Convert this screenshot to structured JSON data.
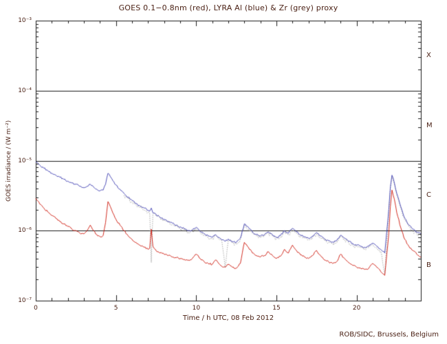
{
  "credit": "ROB/SIDC, Brussels, Belgium",
  "colors": {
    "background": "#ffffff",
    "frame": "#1a1a1a",
    "text": "#4a2014",
    "goes_red": "#cc1408",
    "lyra_al_blue": "#3b3bb0",
    "lyra_zr_grey": "#9a9a9a"
  },
  "chart_data": {
    "type": "line",
    "title": "GOES 0.1−0.8nm (red), LYRA Al (blue) & Zr (grey) proxy",
    "xlabel": "Time / h UTC, 08 Feb 2012",
    "ylabel": "GOES irradiance / (W m⁻²)",
    "x_range": [
      0,
      24
    ],
    "x_major_ticks": [
      0,
      5,
      10,
      15,
      20
    ],
    "x_minor_step": 1,
    "y_scale": "log",
    "y_range": [
      1e-07,
      0.001
    ],
    "y_ticks": [
      {
        "value": 0.001,
        "label": "10⁻³"
      },
      {
        "value": 0.0001,
        "label": "10⁻⁴"
      },
      {
        "value": 1e-05,
        "label": "10⁻⁵"
      },
      {
        "value": 1e-06,
        "label": "10⁻⁶"
      },
      {
        "value": 1e-07,
        "label": "10⁻⁷"
      }
    ],
    "hlines": [
      0.0001,
      1e-05,
      1e-06
    ],
    "flare_classes": [
      {
        "label": "X",
        "flux_low": 0.0001,
        "flux_high": 0.001
      },
      {
        "label": "M",
        "flux_low": 1e-05,
        "flux_high": 0.0001
      },
      {
        "label": "C",
        "flux_low": 1e-06,
        "flux_high": 1e-05
      },
      {
        "label": "B",
        "flux_low": 1e-07,
        "flux_high": 1e-06
      }
    ],
    "grid": false,
    "legend_position": "in-title",
    "series": [
      {
        "name": "GOES 0.1-0.8nm",
        "color": "#cc1408",
        "style": "solid",
        "noise": 0.013,
        "x": [
          0,
          0.25,
          0.5,
          0.75,
          1,
          1.25,
          1.5,
          1.75,
          2,
          2.25,
          2.5,
          2.75,
          3,
          3.2,
          3.4,
          3.6,
          3.8,
          4,
          4.2,
          4.35,
          4.5,
          4.65,
          4.8,
          5,
          5.25,
          5.5,
          5.75,
          6,
          6.25,
          6.5,
          6.75,
          7,
          7.1,
          7.2,
          7.3,
          7.5,
          7.75,
          8,
          8.25,
          8.5,
          8.75,
          9,
          9.25,
          9.5,
          9.75,
          10,
          10.25,
          10.5,
          10.75,
          11,
          11.2,
          11.4,
          11.6,
          11.8,
          12,
          12.25,
          12.5,
          12.75,
          13,
          13.25,
          13.5,
          13.75,
          14,
          14.25,
          14.5,
          14.75,
          15,
          15.25,
          15.5,
          15.75,
          16,
          16.25,
          16.5,
          16.75,
          17,
          17.25,
          17.5,
          17.75,
          18,
          18.25,
          18.5,
          18.75,
          19,
          19.25,
          19.5,
          19.75,
          20,
          20.25,
          20.5,
          20.75,
          21,
          21.25,
          21.5,
          21.75,
          22,
          22.1,
          22.2,
          22.35,
          22.5,
          22.75,
          23,
          23.25,
          23.5,
          23.75,
          24
        ],
        "y": [
          2.9e-06,
          2.4e-06,
          2.1e-06,
          1.85e-06,
          1.65e-06,
          1.5e-06,
          1.35e-06,
          1.25e-06,
          1.15e-06,
          1.05e-06,
          1e-06,
          9.2e-07,
          9e-07,
          1e-06,
          1.2e-06,
          1e-06,
          8.8e-07,
          8.2e-07,
          8.5e-07,
          1.3e-06,
          2.6e-06,
          2.2e-06,
          1.8e-06,
          1.45e-06,
          1.2e-06,
          1e-06,
          8.5e-07,
          7.5e-07,
          6.8e-07,
          6.2e-07,
          5.8e-07,
          5.4e-07,
          5.6e-07,
          1.05e-06,
          6e-07,
          5.2e-07,
          4.8e-07,
          4.6e-07,
          4.4e-07,
          4.2e-07,
          4.1e-07,
          4e-07,
          3.9e-07,
          3.8e-07,
          4e-07,
          4.6e-07,
          4e-07,
          3.6e-07,
          3.4e-07,
          3.3e-07,
          3.8e-07,
          3.4e-07,
          3.1e-07,
          3e-07,
          3.3e-07,
          3e-07,
          2.9e-07,
          3.4e-07,
          6.8e-07,
          5.8e-07,
          4.8e-07,
          4.4e-07,
          4.2e-07,
          4.4e-07,
          5e-07,
          4.4e-07,
          4e-07,
          4.3e-07,
          5.4e-07,
          4.8e-07,
          6.2e-07,
          5.2e-07,
          4.5e-07,
          4.2e-07,
          4e-07,
          4.4e-07,
          5.2e-07,
          4.4e-07,
          3.8e-07,
          3.6e-07,
          3.4e-07,
          3.6e-07,
          4.6e-07,
          4e-07,
          3.5e-07,
          3.2e-07,
          3e-07,
          2.9e-07,
          2.8e-07,
          2.9e-07,
          3.4e-07,
          3e-07,
          2.6e-07,
          2.3e-07,
          9e-07,
          2.2e-06,
          3.8e-06,
          2.8e-06,
          1.8e-06,
          1.1e-06,
          7.5e-07,
          6e-07,
          5.2e-07,
          4.6e-07,
          4.2e-07
        ]
      },
      {
        "name": "LYRA Al proxy",
        "color": "#3b3bb0",
        "style": "solid",
        "noise": 0.013,
        "x": [
          0,
          0.25,
          0.5,
          0.75,
          1,
          1.25,
          1.5,
          1.75,
          2,
          2.25,
          2.5,
          2.75,
          3,
          3.2,
          3.4,
          3.6,
          3.8,
          4,
          4.2,
          4.35,
          4.5,
          4.65,
          4.8,
          5,
          5.25,
          5.5,
          5.75,
          6,
          6.25,
          6.5,
          6.75,
          7,
          7.1,
          7.2,
          7.3,
          7.5,
          7.75,
          8,
          8.25,
          8.5,
          8.75,
          9,
          9.25,
          9.5,
          9.75,
          10,
          10.25,
          10.5,
          10.75,
          11,
          11.2,
          11.4,
          11.6,
          11.8,
          12,
          12.25,
          12.5,
          12.75,
          13,
          13.25,
          13.5,
          13.75,
          14,
          14.25,
          14.5,
          14.75,
          15,
          15.25,
          15.5,
          15.75,
          16,
          16.25,
          16.5,
          16.75,
          17,
          17.25,
          17.5,
          17.75,
          18,
          18.25,
          18.5,
          18.75,
          19,
          19.25,
          19.5,
          19.75,
          20,
          20.25,
          20.5,
          20.75,
          21,
          21.25,
          21.5,
          21.75,
          22,
          22.1,
          22.2,
          22.35,
          22.5,
          22.75,
          23,
          23.25,
          23.5,
          23.75,
          24
        ],
        "y": [
          9.5e-06,
          8.6e-06,
          7.8e-06,
          7.2e-06,
          6.6e-06,
          6.2e-06,
          5.8e-06,
          5.4e-06,
          5.1e-06,
          4.8e-06,
          4.6e-06,
          4.3e-06,
          4.1e-06,
          4.3e-06,
          4.6e-06,
          4.2e-06,
          3.9e-06,
          3.7e-06,
          3.8e-06,
          4.6e-06,
          6.6e-06,
          5.9e-06,
          5.2e-06,
          4.5e-06,
          3.9e-06,
          3.4e-06,
          3e-06,
          2.7e-06,
          2.45e-06,
          2.25e-06,
          2.1e-06,
          1.95e-06,
          1.9e-06,
          2.1e-06,
          1.8e-06,
          1.7e-06,
          1.55e-06,
          1.45e-06,
          1.35e-06,
          1.28e-06,
          1.2e-06,
          1.13e-06,
          1.07e-06,
          1e-06,
          1.02e-06,
          1.12e-06,
          9.8e-07,
          9e-07,
          8.4e-07,
          8e-07,
          8.8e-07,
          8e-07,
          7.4e-07,
          7e-07,
          7.6e-07,
          7e-07,
          6.8e-07,
          7.8e-07,
          1.25e-06,
          1.12e-06,
          9.6e-07,
          8.8e-07,
          8.4e-07,
          8.8e-07,
          9.6e-07,
          8.8e-07,
          8e-07,
          8.5e-07,
          1e-06,
          9.2e-07,
          1.08e-06,
          9.6e-07,
          8.6e-07,
          8.2e-07,
          7.8e-07,
          8.4e-07,
          9.4e-07,
          8.4e-07,
          7.6e-07,
          7.2e-07,
          6.9e-07,
          7.2e-07,
          8.6e-07,
          7.8e-07,
          7e-07,
          6.6e-07,
          6.2e-07,
          6e-07,
          5.8e-07,
          6e-07,
          6.6e-07,
          6e-07,
          5.4e-07,
          4.8e-07,
          2e-06,
          4.2e-06,
          6.2e-06,
          4.8e-06,
          3.4e-06,
          2.2e-06,
          1.5e-06,
          1.2e-06,
          1.05e-06,
          9.5e-07,
          9e-07
        ]
      },
      {
        "name": "LYRA Zr proxy",
        "color": "#9a9a9a",
        "style": "dotted",
        "noise": 0.03,
        "x": [
          5.5,
          5.75,
          6,
          6.25,
          6.5,
          6.75,
          7,
          7.1,
          7.2,
          7.3,
          7.5,
          7.75,
          8,
          8.25,
          8.5,
          8.75,
          9,
          9.25,
          9.5,
          9.75,
          10,
          10.25,
          10.5,
          10.75,
          11,
          11.2,
          11.4,
          11.6,
          11.8,
          12,
          12.25,
          12.5,
          12.75,
          13,
          13.25,
          13.5,
          13.75,
          14,
          14.25,
          14.5,
          14.75,
          15,
          15.25,
          15.5,
          15.75,
          16,
          16.25,
          16.5,
          16.75,
          17,
          17.25,
          17.5,
          17.75,
          18,
          18.25,
          18.5,
          18.75,
          19,
          19.25,
          19.5,
          19.75,
          20,
          20.25,
          20.5,
          20.75,
          21,
          21.25,
          21.5,
          21.75,
          22,
          22.1,
          22.2,
          22.35,
          22.5,
          22.75,
          23,
          23.25,
          23.5,
          23.75,
          24
        ],
        "y": [
          3.2e-06,
          2.85e-06,
          2.6e-06,
          2.35e-06,
          2.15e-06,
          2e-06,
          1.85e-06,
          1.8e-06,
          3.5e-07,
          1.75e-06,
          1.62e-06,
          1.5e-06,
          1.4e-06,
          1.3e-06,
          1.23e-06,
          1.15e-06,
          1.08e-06,
          1.02e-06,
          9.6e-07,
          9.8e-07,
          1.07e-06,
          9.4e-07,
          8.6e-07,
          8e-07,
          7.6e-07,
          8.4e-07,
          7.6e-07,
          7e-07,
          3e-07,
          7.2e-07,
          6.7e-07,
          6.5e-07,
          7.4e-07,
          1.18e-06,
          1.06e-06,
          9.2e-07,
          8.4e-07,
          8e-07,
          8.4e-07,
          9.2e-07,
          8.4e-07,
          7.6e-07,
          8.1e-07,
          9.6e-07,
          8.8e-07,
          1.03e-06,
          9.2e-07,
          8.2e-07,
          7.8e-07,
          7.4e-07,
          8e-07,
          9e-07,
          8e-07,
          7.2e-07,
          6.9e-07,
          6.6e-07,
          6.9e-07,
          8.2e-07,
          7.4e-07,
          6.7e-07,
          6.3e-07,
          5.9e-07,
          5.7e-07,
          5.5e-07,
          5.7e-07,
          6.3e-07,
          5.7e-07,
          5.1e-07,
          2.4e-07,
          1.9e-06,
          4e-06,
          5.9e-06,
          4.6e-06,
          3.2e-06,
          2.1e-06,
          1.4e-06,
          1.15e-06,
          1e-06,
          9e-07,
          8.6e-07
        ]
      }
    ]
  }
}
